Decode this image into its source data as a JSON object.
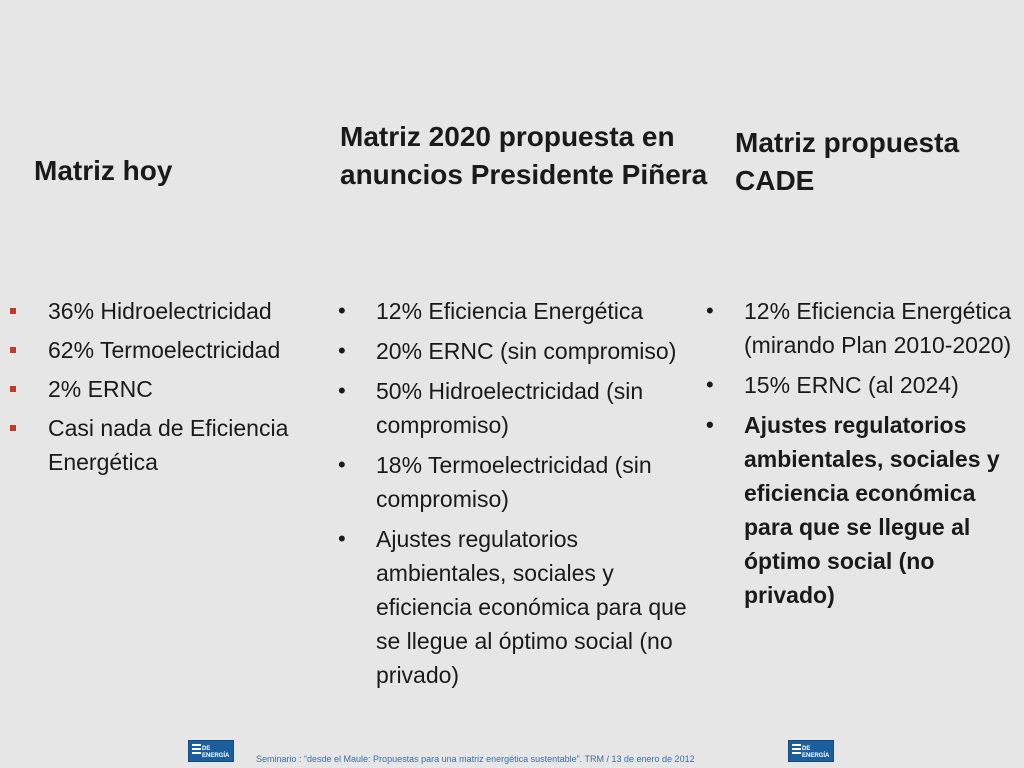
{
  "columns": [
    {
      "title": "Matriz hoy",
      "bullets": [
        "36% Hidroelectricidad",
        "62% Termoelectricidad",
        "2% ERNC",
        "Casi nada de Eficiencia Energética"
      ]
    },
    {
      "title": "Matriz 2020 propuesta en anuncios Presidente Piñera",
      "bullets": [
        "12% Eficiencia Energética",
        "20% ERNC (sin compromiso)",
        "50% Hidroelectricidad (sin compromiso)",
        "18% Termoelectricidad (sin compromiso)",
        "Ajustes regulatorios ambientales, sociales y eficiencia económica para que se llegue al óptimo social (no privado)"
      ]
    },
    {
      "title": "Matriz propuesta CADE",
      "bullets": [
        "12% Eficiencia Energética (mirando Plan 2010-2020)",
        "15% ERNC  (al 2024)",
        "Ajustes regulatorios ambientales, sociales y eficiencia económica para que se llegue al óptimo social (no privado)"
      ]
    }
  ],
  "footer": {
    "text": "Seminario : “desde el Maule: Propuestas para una matriz energética sustentable”.  TRM  /  13 de enero de 2012",
    "logo_text": "DE ENERGÍA"
  },
  "colors": {
    "background": "#e6e6e6",
    "square_bullet": "#c0392b",
    "footer_text": "#3a6ea5",
    "logo_blue": "#1b5e9e"
  }
}
